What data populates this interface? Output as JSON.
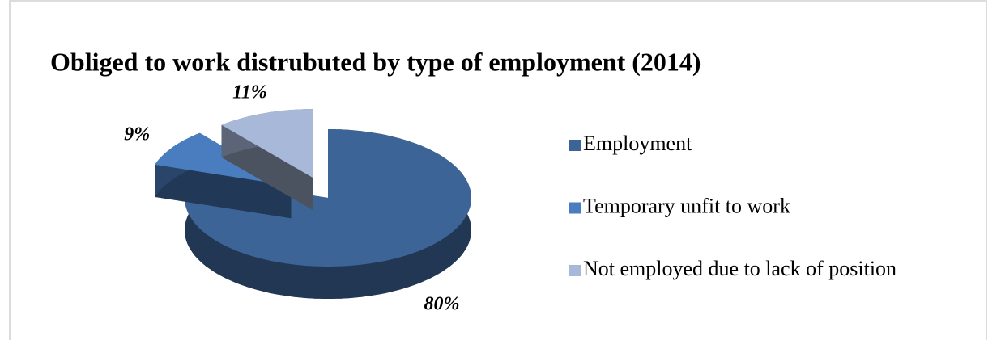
{
  "chart_data": {
    "type": "pie3d",
    "title": "Obliged to work distrubuted by type of employment (2014)",
    "categories": [
      "Employment",
      "Temporary unfit to work",
      "Not employed due to lack of position"
    ],
    "values": [
      80,
      9,
      11
    ],
    "value_labels": [
      "80%",
      "9%",
      "11%"
    ],
    "colors": [
      "#3d6496",
      "#4a7dbf",
      "#a7b8d8"
    ],
    "legend": "right"
  }
}
